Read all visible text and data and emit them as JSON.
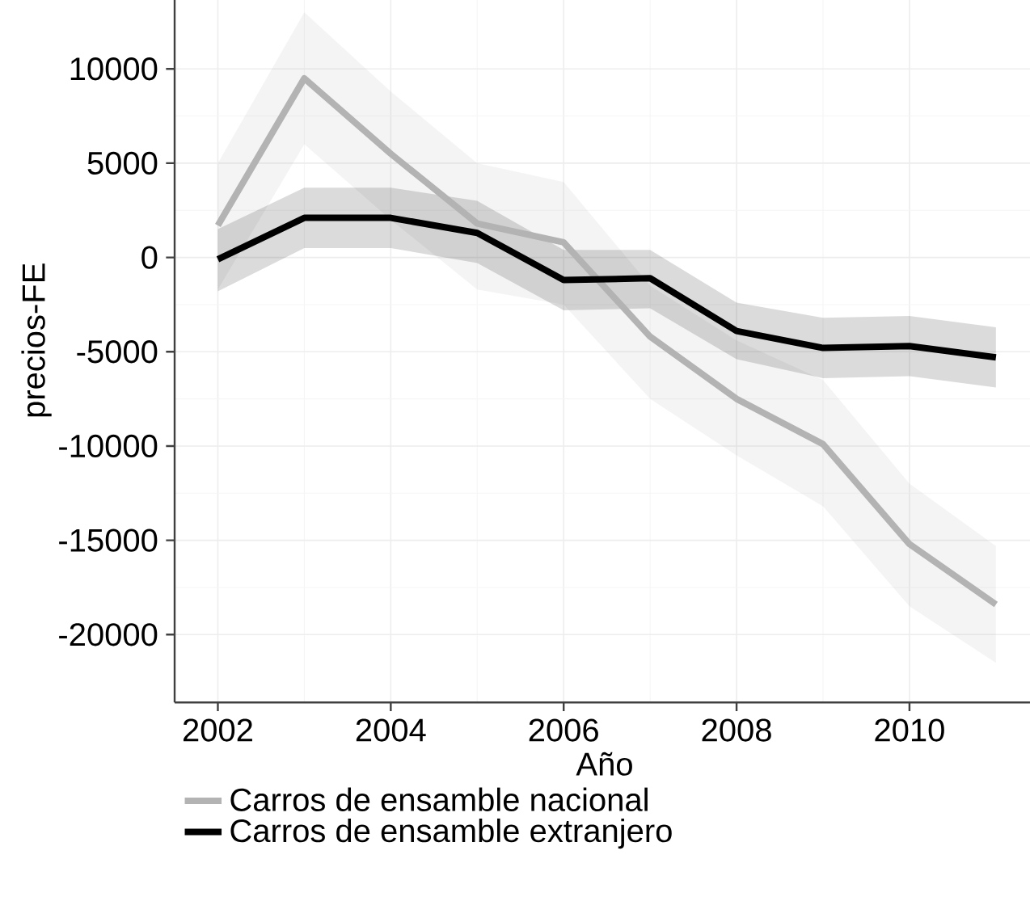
{
  "chart_data": {
    "type": "line",
    "xlabel": "Año",
    "ylabel": "precios-FE",
    "x": [
      2002,
      2003,
      2004,
      2005,
      2006,
      2007,
      2008,
      2009,
      2010,
      2011
    ],
    "series": [
      {
        "name": "Carros de ensamble nacional",
        "color": "#b3b3b3",
        "values": [
          1700,
          9500,
          5500,
          1800,
          800,
          -4200,
          -7500,
          -9900,
          -15200,
          -18400
        ],
        "lower": [
          -1700,
          6000,
          2000,
          -1700,
          -2500,
          -7500,
          -10500,
          -13200,
          -18500,
          -21500
        ],
        "upper": [
          5000,
          13000,
          8800,
          5000,
          4000,
          -1500,
          -4400,
          -6500,
          -12000,
          -15300
        ]
      },
      {
        "name": "Carros de ensamble extranjero",
        "color": "#000000",
        "values": [
          -100,
          2100,
          2100,
          1300,
          -1200,
          -1100,
          -3900,
          -4800,
          -4700,
          -5300
        ],
        "lower": [
          -1800,
          500,
          500,
          -300,
          -2800,
          -2700,
          -5400,
          -6400,
          -6300,
          -6900
        ],
        "upper": [
          1500,
          3700,
          3700,
          3000,
          400,
          400,
          -2400,
          -3200,
          -3100,
          -3700
        ]
      }
    ],
    "xlim": [
      2001.5,
      2011.45
    ],
    "ylim": [
      -23600,
      14800
    ],
    "xticks": [
      2002,
      2004,
      2006,
      2008,
      2010
    ],
    "yticks": [
      -20000,
      -15000,
      -10000,
      -5000,
      0,
      5000,
      10000
    ],
    "grid": true,
    "legend": "bottom",
    "line_style": "solid",
    "marker": "none"
  }
}
